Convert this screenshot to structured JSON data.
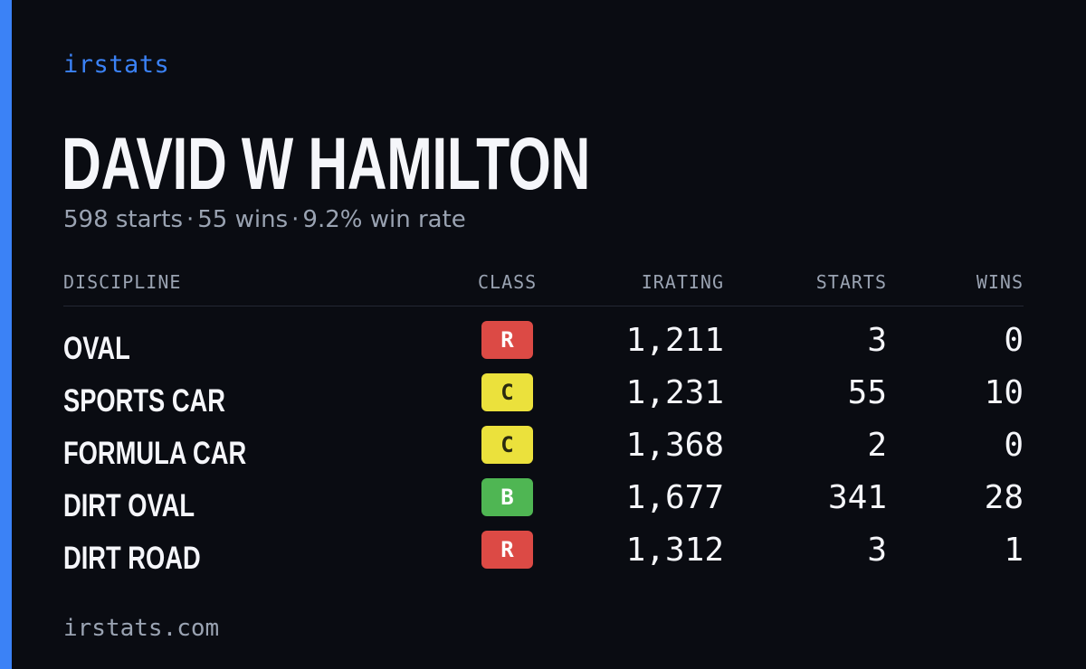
{
  "brand": "irstats",
  "driver_name": "DAVID W HAMILTON",
  "summary": {
    "starts": "598 starts",
    "wins": "55 wins",
    "win_rate": "9.2% win rate",
    "separator": "·"
  },
  "table": {
    "headers": {
      "discipline": "DISCIPLINE",
      "class": "CLASS",
      "irating": "IRATING",
      "starts": "STARTS",
      "wins": "WINS"
    },
    "rows": [
      {
        "discipline": "OVAL",
        "class": "R",
        "class_color": "#dc4a45",
        "class_text_color": "#ffffff",
        "irating": "1,211",
        "starts": "3",
        "wins": "0"
      },
      {
        "discipline": "SPORTS CAR",
        "class": "C",
        "class_color": "#ebe13c",
        "class_text_color": "#2a2a10",
        "irating": "1,231",
        "starts": "55",
        "wins": "10"
      },
      {
        "discipline": "FORMULA CAR",
        "class": "C",
        "class_color": "#ebe13c",
        "class_text_color": "#2a2a10",
        "irating": "1,368",
        "starts": "2",
        "wins": "0"
      },
      {
        "discipline": "DIRT OVAL",
        "class": "B",
        "class_color": "#4fb653",
        "class_text_color": "#ffffff",
        "irating": "1,677",
        "starts": "341",
        "wins": "28"
      },
      {
        "discipline": "DIRT ROAD",
        "class": "R",
        "class_color": "#dc4a45",
        "class_text_color": "#ffffff",
        "irating": "1,312",
        "starts": "3",
        "wins": "1"
      }
    ]
  },
  "footer": "irstats.com",
  "colors": {
    "background": "#0a0c12",
    "accent": "#3b82f6",
    "text_primary": "#f5f6fa",
    "text_muted": "#9aa3b2"
  }
}
